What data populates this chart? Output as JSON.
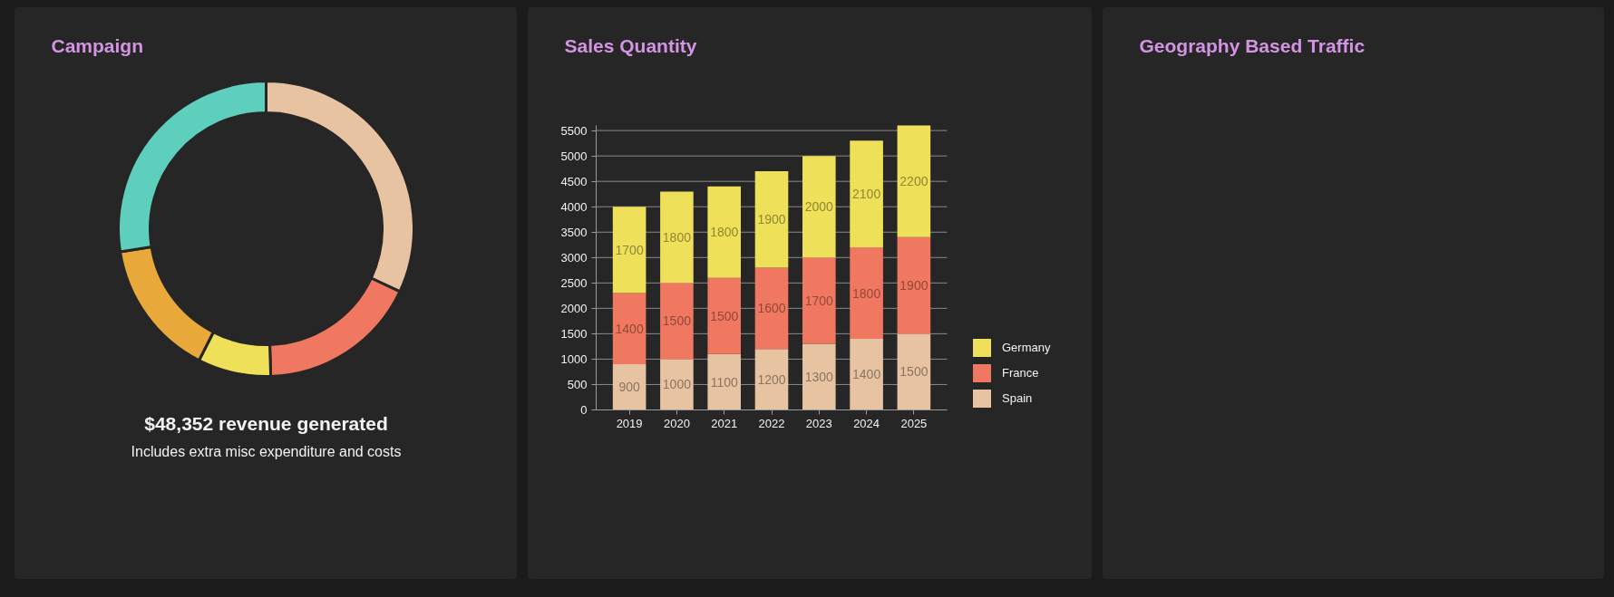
{
  "chart_data": [
    {
      "type": "donut",
      "title": "Campaign",
      "categories": [
        null,
        null,
        null,
        null,
        null
      ],
      "values": [
        32,
        17.5,
        8,
        15,
        27.5
      ],
      "colors": [
        "#e8c3a2",
        "#f07860",
        "#efe05a",
        "#e9a93a",
        "#5ecfbd"
      ],
      "annotations": [
        "$48,352 revenue generated",
        "Includes extra misc expenditure and costs"
      ]
    },
    {
      "type": "bar",
      "title": "Sales Quantity",
      "categories": [
        "2019",
        "2020",
        "2021",
        "2022",
        "2023",
        "2024",
        "2025"
      ],
      "stacked": true,
      "series": [
        {
          "name": "Spain",
          "color": "#e8c3a2",
          "values": [
            900,
            1000,
            1100,
            1200,
            1300,
            1400,
            1500
          ]
        },
        {
          "name": "France",
          "color": "#f07860",
          "values": [
            1400,
            1500,
            1500,
            1600,
            1700,
            1800,
            1900
          ]
        },
        {
          "name": "Germany",
          "color": "#efe05a",
          "values": [
            1700,
            1800,
            1800,
            1900,
            2000,
            2100,
            2200
          ]
        }
      ],
      "ylim": [
        0,
        5600
      ],
      "yticks": [
        0,
        500,
        1000,
        1500,
        2000,
        2500,
        3000,
        3500,
        4000,
        4500,
        5000,
        5500
      ],
      "grid": "y",
      "legend": "right",
      "data_labels": true
    },
    {
      "type": "other",
      "title": "Geography Based Traffic"
    }
  ]
}
